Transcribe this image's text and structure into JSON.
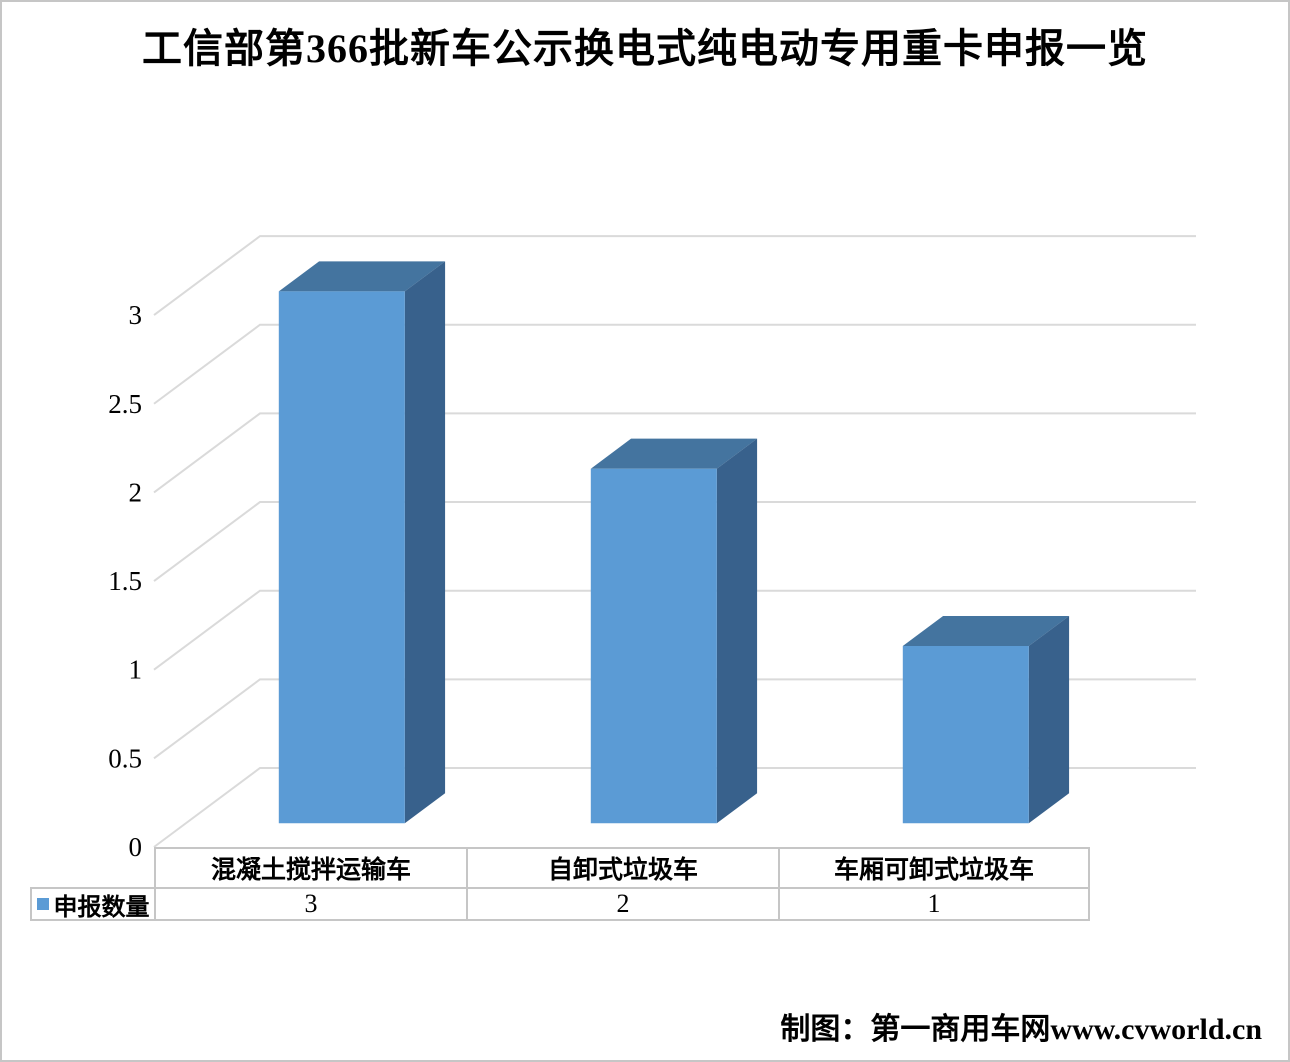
{
  "title": "工信部第366批新车公示换电式纯电动专用重卡申报一览",
  "credit": "制图：第一商用车网www.cvworld.cn",
  "legend": {
    "label": "申报数量"
  },
  "colors": {
    "bar_front": "#5B9BD5",
    "bar_top": "#44749F",
    "bar_side": "#38618C",
    "legend_marker": "#5B9BD5",
    "gridline": "#DADADA",
    "table_border": "#C6C6C6",
    "frame_border": "#C6C6C6",
    "background": "#FFFFFF",
    "text": "#000000"
  },
  "chart_data": {
    "type": "bar",
    "variant": "3d-column",
    "title": "工信部第366批新车公示换电式纯电动专用重卡申报一览",
    "categories": [
      "混凝土搅拌运输车",
      "自卸式垃圾车",
      "车厢可卸式垃圾车"
    ],
    "series": [
      {
        "name": "申报数量",
        "values": [
          3,
          2,
          1
        ]
      }
    ],
    "ylim": [
      0,
      3
    ],
    "ytick_step": 0.5,
    "yticks": [
      "0",
      "0.5",
      "1",
      "1.5",
      "2",
      "2.5",
      "3"
    ],
    "grid": true,
    "legend_position": "bottom-table",
    "xlabel": "",
    "ylabel": ""
  }
}
